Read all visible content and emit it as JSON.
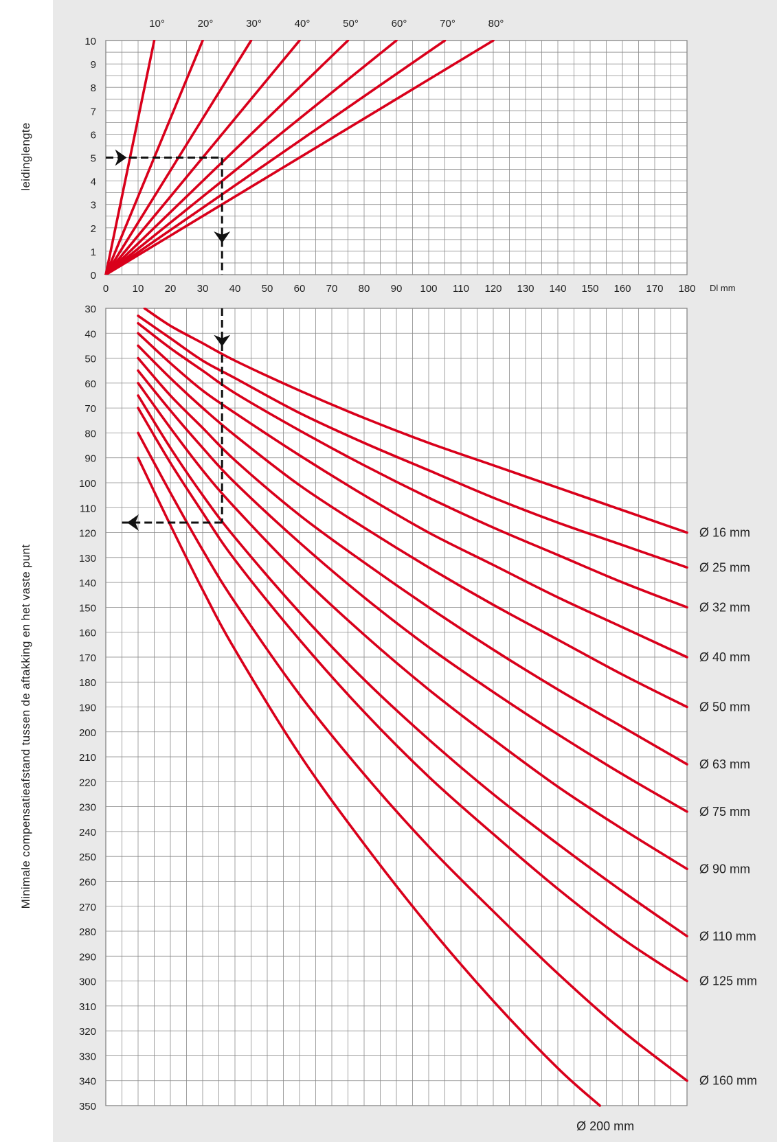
{
  "chart_data": [
    {
      "type": "line",
      "ylabel": "leidinglengte",
      "xlabel": "Dl mm",
      "xlim": [
        0,
        180
      ],
      "ylim": [
        0,
        10
      ],
      "x_ticks": [
        0,
        10,
        20,
        30,
        40,
        50,
        60,
        70,
        80,
        90,
        100,
        110,
        120,
        130,
        140,
        150,
        160,
        170,
        180
      ],
      "y_ticks": [
        0,
        1,
        2,
        3,
        4,
        5,
        6,
        7,
        8,
        9,
        10
      ],
      "grid": true,
      "series": [
        {
          "name": "10°",
          "x": [
            0,
            15
          ],
          "y": [
            0,
            10
          ]
        },
        {
          "name": "20°",
          "x": [
            0,
            30
          ],
          "y": [
            0,
            10
          ]
        },
        {
          "name": "30°",
          "x": [
            0,
            45
          ],
          "y": [
            0,
            10
          ]
        },
        {
          "name": "40°",
          "x": [
            0,
            60
          ],
          "y": [
            0,
            10
          ]
        },
        {
          "name": "50°",
          "x": [
            0,
            75
          ],
          "y": [
            0,
            10
          ]
        },
        {
          "name": "60°",
          "x": [
            0,
            90
          ],
          "y": [
            0,
            10
          ]
        },
        {
          "name": "70°",
          "x": [
            0,
            105
          ],
          "y": [
            0,
            10
          ]
        },
        {
          "name": "80°",
          "x": [
            0,
            120
          ],
          "y": [
            0,
            10
          ]
        }
      ],
      "example_path": {
        "x": [
          0,
          36,
          36
        ],
        "y": [
          5,
          5,
          0
        ]
      }
    },
    {
      "type": "line",
      "ylabel": "Minimale compensatieafstand tussen de aftakking en het vaste punt",
      "xlim": [
        0,
        180
      ],
      "ylim": [
        350,
        30
      ],
      "y_ticks": [
        30,
        40,
        50,
        60,
        70,
        80,
        90,
        100,
        110,
        120,
        130,
        140,
        150,
        160,
        170,
        180,
        190,
        200,
        210,
        220,
        230,
        240,
        250,
        260,
        270,
        280,
        290,
        300,
        310,
        320,
        330,
        340,
        350
      ],
      "grid": true,
      "series": [
        {
          "name": "Ø 16 mm",
          "x": [
            12,
            20,
            30,
            40,
            60,
            80,
            100,
            120,
            140,
            160,
            180
          ],
          "y": [
            30,
            37,
            44,
            51,
            63,
            74,
            84,
            93,
            102,
            111,
            120
          ]
        },
        {
          "name": "Ø 25 mm",
          "x": [
            10,
            20,
            30,
            40,
            60,
            80,
            100,
            120,
            140,
            160,
            180
          ],
          "y": [
            33,
            42,
            51,
            58,
            72,
            84,
            95,
            106,
            116,
            125,
            134
          ]
        },
        {
          "name": "Ø 32 mm",
          "x": [
            10,
            20,
            30,
            40,
            60,
            80,
            100,
            120,
            140,
            160,
            180
          ],
          "y": [
            36,
            46,
            55,
            64,
            79,
            93,
            106,
            118,
            129,
            140,
            150
          ]
        },
        {
          "name": "Ø 40 mm",
          "x": [
            10,
            20,
            30,
            40,
            60,
            80,
            100,
            120,
            140,
            160,
            180
          ],
          "y": [
            40,
            52,
            63,
            72,
            89,
            105,
            120,
            133,
            146,
            158,
            170
          ]
        },
        {
          "name": "Ø 50 mm",
          "x": [
            10,
            20,
            30,
            40,
            60,
            80,
            100,
            120,
            140,
            160,
            180
          ],
          "y": [
            45,
            58,
            70,
            81,
            101,
            118,
            134,
            149,
            163,
            177,
            190
          ]
        },
        {
          "name": "Ø 63 mm",
          "x": [
            10,
            20,
            30,
            40,
            60,
            80,
            100,
            120,
            140,
            160,
            180
          ],
          "y": [
            50,
            65,
            78,
            91,
            113,
            132,
            150,
            167,
            183,
            198,
            213
          ]
        },
        {
          "name": "Ø 75 mm",
          "x": [
            10,
            20,
            30,
            40,
            60,
            80,
            100,
            120,
            140,
            160,
            180
          ],
          "y": [
            55,
            71,
            86,
            100,
            124,
            146,
            166,
            184,
            201,
            217,
            232
          ]
        },
        {
          "name": "Ø 90 mm",
          "x": [
            10,
            20,
            30,
            40,
            60,
            80,
            100,
            120,
            140,
            160,
            180
          ],
          "y": [
            60,
            78,
            95,
            110,
            137,
            161,
            183,
            203,
            222,
            239,
            255
          ]
        },
        {
          "name": "Ø 110 mm",
          "x": [
            10,
            20,
            30,
            40,
            60,
            80,
            100,
            120,
            140,
            160,
            180
          ],
          "y": [
            65,
            86,
            105,
            122,
            152,
            179,
            203,
            225,
            245,
            264,
            282
          ]
        },
        {
          "name": "Ø 125 mm",
          "x": [
            10,
            20,
            30,
            40,
            60,
            80,
            100,
            120,
            140,
            160,
            180
          ],
          "y": [
            70,
            92,
            112,
            131,
            163,
            192,
            218,
            241,
            263,
            283,
            300
          ]
        },
        {
          "name": "Ø 160 mm",
          "x": [
            10,
            20,
            30,
            40,
            60,
            80,
            100,
            120,
            140,
            160,
            180
          ],
          "y": [
            80,
            104,
            127,
            148,
            185,
            217,
            246,
            272,
            297,
            320,
            340
          ]
        },
        {
          "name": "Ø 200 mm",
          "x": [
            10,
            20,
            30,
            40,
            60,
            80,
            100,
            120,
            140,
            153
          ],
          "y": [
            90,
            117,
            143,
            167,
            209,
            245,
            278,
            308,
            335,
            350
          ]
        }
      ],
      "example_path": {
        "x": [
          36,
          36,
          5
        ],
        "y": [
          30,
          116,
          116
        ]
      }
    }
  ]
}
